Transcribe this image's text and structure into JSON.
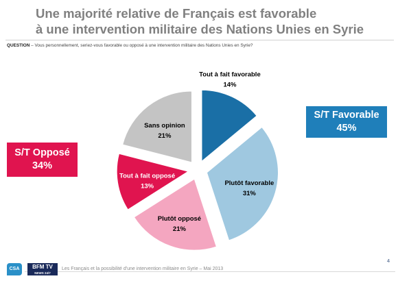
{
  "title_line1": "Une majorité relative de Français est favorable",
  "title_line2": "à une intervention militaire des Nations Unies en Syrie",
  "question_label": "QUESTION",
  "question_text": " – Vous personnellement, seriez-vous favorable ou opposé à une intervention militaire des Nations Unies en Syrie?",
  "chart_data": {
    "type": "pie",
    "title": "",
    "slices": [
      {
        "label": "Tout à fait favorable",
        "value": 14,
        "value_label": "14%",
        "color": "#1a6fa6",
        "label_color": "#000000"
      },
      {
        "label": "Plutôt favorable",
        "value": 31,
        "value_label": "31%",
        "color": "#9fc8e0",
        "label_color": "#000000"
      },
      {
        "label": "Plutôt opposé",
        "value": 21,
        "value_label": "21%",
        "color": "#f4a6c0",
        "label_color": "#000000"
      },
      {
        "label": "Tout à fait opposé",
        "value": 13,
        "value_label": "13%",
        "color": "#e0144f",
        "label_color": "#ffffff"
      },
      {
        "label": "Sans opinion",
        "value": 21,
        "value_label": "21%",
        "color": "#c4c4c4",
        "label_color": "#000000"
      }
    ]
  },
  "summary_favorable": {
    "label": "S/T Favorable",
    "value": "45%",
    "color": "#1f7fba"
  },
  "summary_oppose": {
    "label": "S/T Opposé",
    "value": "34%",
    "color": "#e0144f"
  },
  "footer_text": "Les Français et la possibilité d'une intervention militaire en Syrie – Mai 2013",
  "logo_csa": "CSA",
  "logo_bfm": "BFM TV",
  "logo_bfm_sub": "NEWS 24/7",
  "page_number": "4"
}
